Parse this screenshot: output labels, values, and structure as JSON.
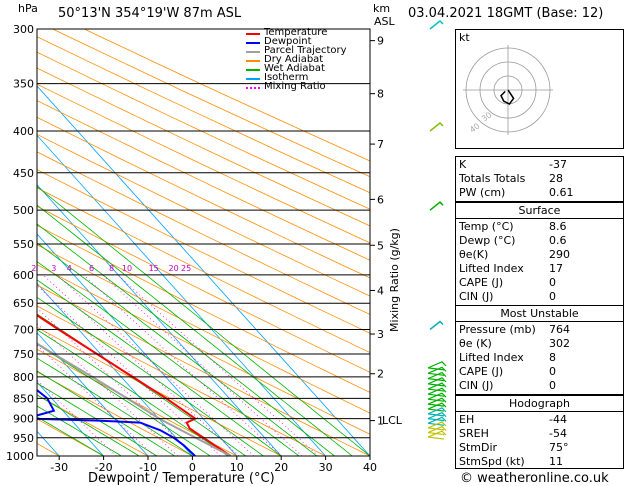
{
  "header": {
    "hpa_label": "hPa",
    "station": "50°13'N  354°19'W  87m  ASL",
    "km_label": "km",
    "asl_label": "ASL",
    "datetime": "03.04.2021  18GMT  (Base: 12)"
  },
  "footer": {
    "xlabel": "Dewpoint / Temperature (°C)",
    "credit": "© weatheronline.co.uk"
  },
  "legend": [
    {
      "label": "Temperature",
      "color": "#ff0000",
      "dash": "solid"
    },
    {
      "label": "Dewpoint",
      "color": "#0000ff",
      "dash": "solid"
    },
    {
      "label": "Parcel Trajectory",
      "color": "#a0a0a0",
      "dash": "solid"
    },
    {
      "label": "Dry Adiabat",
      "color": "#ff8c00",
      "dash": "solid"
    },
    {
      "label": "Wet Adiabat",
      "color": "#00b400",
      "dash": "solid"
    },
    {
      "label": "Isotherm",
      "color": "#00a0ff",
      "dash": "solid"
    },
    {
      "label": "Mixing Ratio",
      "color": "#ff00ff",
      "dash": "dotted"
    }
  ],
  "chart_data": {
    "type": "line",
    "title": "Skew-T log-P diagram",
    "xlabel": "Dewpoint / Temperature (°C)",
    "ylabel": "hPa",
    "y2label": "Mixing Ratio (g/kg)",
    "xlim": [
      -35,
      40
    ],
    "ylim": [
      1000,
      300
    ],
    "x_ticks": [
      -30,
      -20,
      -10,
      0,
      10,
      20,
      30,
      40
    ],
    "pressure_levels": [
      300,
      350,
      400,
      450,
      500,
      550,
      600,
      650,
      700,
      750,
      800,
      850,
      900,
      950,
      1000
    ],
    "km_ticks": [
      {
        "label": "9",
        "p": 310
      },
      {
        "label": "8",
        "p": 360
      },
      {
        "label": "7",
        "p": 415
      },
      {
        "label": "6",
        "p": 485
      },
      {
        "label": "5",
        "p": 552
      },
      {
        "label": "4",
        "p": 627
      },
      {
        "label": "3",
        "p": 709
      },
      {
        "label": "2",
        "p": 793
      },
      {
        "label": "1",
        "p": 905
      }
    ],
    "lcl": {
      "label": "LCL",
      "p": 903
    },
    "mixing_ratio_labels": [
      {
        "label": "1",
        "x_at_600": -7
      },
      {
        "label": "2",
        "x_at_600": 1
      },
      {
        "label": "3",
        "x_at_600": 5.5
      },
      {
        "label": "4",
        "x_at_600": 9
      },
      {
        "label": "6",
        "x_at_600": 14
      },
      {
        "label": "8",
        "x_at_600": 18.5
      },
      {
        "label": "10",
        "x_at_600": 22
      },
      {
        "label": "15",
        "x_at_600": 28
      },
      {
        "label": "20",
        "x_at_600": 32.5
      },
      {
        "label": "25",
        "x_at_600": 35.3
      }
    ],
    "series": [
      {
        "name": "Temperature",
        "color": "#ff0000",
        "points": [
          [
            1000,
            8.6
          ],
          [
            950,
            6.2
          ],
          [
            925,
            5.0
          ],
          [
            910,
            5.5
          ],
          [
            900,
            8.2
          ],
          [
            850,
            5.8
          ],
          [
            800,
            2.6
          ],
          [
            750,
            -0.8
          ],
          [
            700,
            -4.5
          ],
          [
            650,
            -8.2
          ],
          [
            600,
            -12.3
          ],
          [
            570,
            -15.0
          ],
          [
            550,
            -16.8
          ],
          [
            500,
            -21.8
          ],
          [
            450,
            -28.5
          ],
          [
            400,
            -34.5
          ],
          [
            350,
            -42.0
          ],
          [
            300,
            -50.0
          ]
        ]
      },
      {
        "name": "Dewpoint",
        "color": "#0000ff",
        "points": [
          [
            1000,
            0.6
          ],
          [
            970,
            0.2
          ],
          [
            950,
            -0.5
          ],
          [
            930,
            -2.0
          ],
          [
            910,
            -5.0
          ],
          [
            905,
            -14.0
          ],
          [
            900,
            -30.0
          ],
          [
            880,
            -22.0
          ],
          [
            850,
            -21.0
          ],
          [
            820,
            -22.0
          ],
          [
            800,
            -24.0
          ],
          [
            770,
            -27.0
          ],
          [
            750,
            -31.0
          ],
          [
            720,
            -41.0
          ],
          [
            700,
            -48.0
          ],
          [
            650,
            -50.0
          ],
          [
            600,
            -50.0
          ],
          [
            580,
            -48.0
          ],
          [
            570,
            -37.0
          ],
          [
            560,
            -42.0
          ],
          [
            545,
            -45.0
          ],
          [
            530,
            -46.5
          ],
          [
            500,
            -42.0
          ],
          [
            450,
            -35.5
          ],
          [
            425,
            -37.0
          ],
          [
            400,
            -42.0
          ],
          [
            375,
            -44.5
          ],
          [
            350,
            -44.0
          ],
          [
            340,
            -43.0
          ],
          [
            330,
            -47.0
          ],
          [
            320,
            -45.0
          ],
          [
            300,
            -45.0
          ]
        ]
      },
      {
        "name": "Parcel Trajectory",
        "color": "#a0a0a0",
        "points": [
          [
            1000,
            8.6
          ],
          [
            950,
            4.4
          ],
          [
            903,
            0.3
          ],
          [
            850,
            -3.0
          ],
          [
            800,
            -6.5
          ],
          [
            750,
            -10.5
          ],
          [
            700,
            -14.5
          ],
          [
            650,
            -19.0
          ],
          [
            600,
            -24.0
          ],
          [
            550,
            -29.5
          ],
          [
            500,
            -35.5
          ],
          [
            450,
            -42.5
          ],
          [
            400,
            -50.0
          ],
          [
            350,
            -58.5
          ],
          [
            300,
            -68.0
          ]
        ]
      }
    ]
  },
  "hodograph": {
    "label": "kt",
    "rings": [
      {
        "label": "40"
      },
      {
        "label": "30"
      }
    ],
    "points_kt": [
      [
        0,
        0
      ],
      [
        2,
        3
      ],
      [
        4,
        6
      ],
      [
        1,
        10
      ],
      [
        -3,
        8
      ],
      [
        -5,
        4
      ],
      [
        -2,
        1
      ]
    ]
  },
  "indices": {
    "k_label": "K",
    "k": "-37",
    "tt_label": "Totals Totals",
    "tt": "28",
    "pw_label": "PW (cm)",
    "pw": "0.61"
  },
  "surface": {
    "title": "Surface",
    "rows": [
      {
        "label": "Temp (°C)",
        "value": "8.6"
      },
      {
        "label": "Dewp (°C)",
        "value": "0.6"
      },
      {
        "label": "θe(K)",
        "value": "290"
      },
      {
        "label": "Lifted Index",
        "value": "17"
      },
      {
        "label": "CAPE (J)",
        "value": "0"
      },
      {
        "label": "CIN (J)",
        "value": "0"
      }
    ]
  },
  "unstable": {
    "title": "Most Unstable",
    "rows": [
      {
        "label": "Pressure (mb)",
        "value": "764"
      },
      {
        "label": "θe (K)",
        "value": "302"
      },
      {
        "label": "Lifted Index",
        "value": "8"
      },
      {
        "label": "CAPE (J)",
        "value": "0"
      },
      {
        "label": "CIN (J)",
        "value": "0"
      }
    ]
  },
  "hodo_table": {
    "title": "Hodograph",
    "rows": [
      {
        "label": "EH",
        "value": "-44"
      },
      {
        "label": "SREH",
        "value": "-54"
      },
      {
        "label": "StmDir",
        "value": "75°"
      },
      {
        "label": "StmSpd (kt)",
        "value": "11"
      }
    ]
  }
}
